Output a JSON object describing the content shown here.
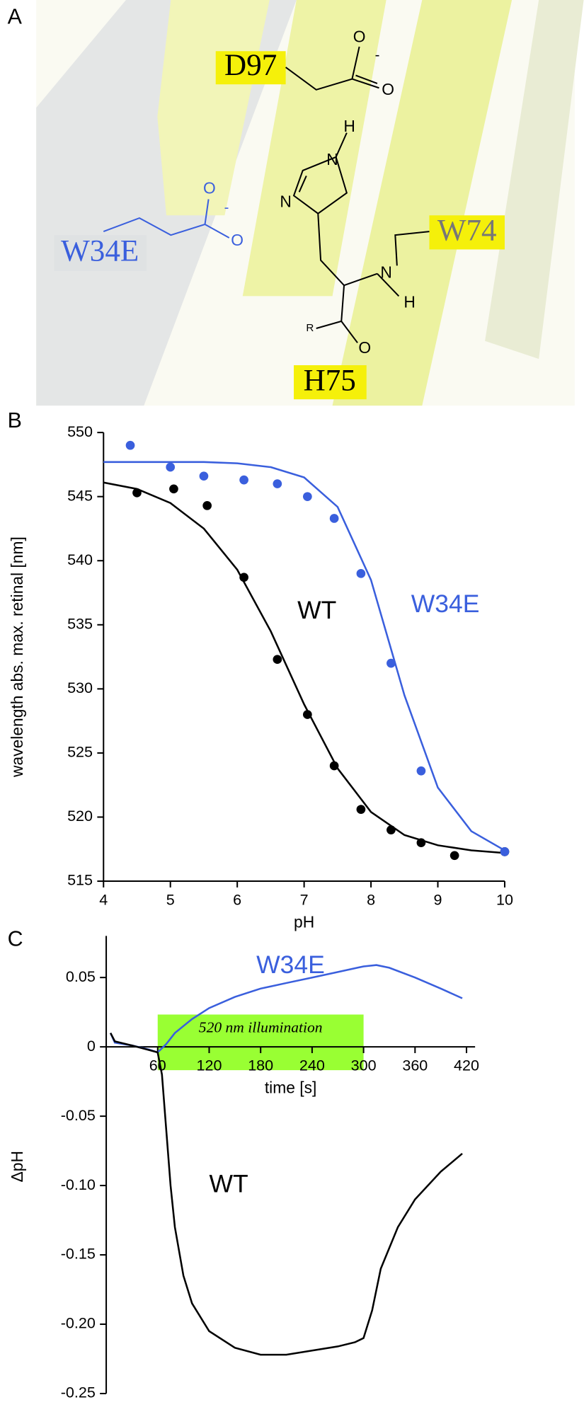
{
  "panel_a": {
    "panel": "A",
    "residues": [
      "D97",
      "W34E",
      "W74",
      "H75"
    ],
    "atoms": [
      "O",
      "-",
      "O",
      "H",
      "N",
      "N",
      "N",
      "H",
      "R",
      "O",
      "O",
      "-",
      "O"
    ]
  },
  "chart_data": [
    {
      "type": "scatter",
      "panel": "B",
      "xlabel": "pH",
      "ylabel": "wavelength abs. max. retinal [nm]",
      "xlim": [
        4,
        10
      ],
      "ylim": [
        515,
        550
      ],
      "xticks": [
        4,
        5,
        6,
        7,
        8,
        9,
        10
      ],
      "yticks": [
        515,
        520,
        525,
        530,
        535,
        540,
        545,
        550
      ],
      "series": [
        {
          "name": "WT",
          "color": "#000000",
          "x": [
            4.5,
            5.05,
            5.55,
            6.1,
            6.6,
            7.05,
            7.45,
            7.85,
            8.3,
            8.75,
            9.25,
            10.0
          ],
          "values": [
            545.3,
            545.6,
            544.3,
            538.7,
            532.3,
            528,
            524,
            520.6,
            519,
            518,
            517,
            517.3
          ],
          "fit_x": [
            4,
            4.5,
            5,
            5.5,
            6,
            6.5,
            7,
            7.5,
            8,
            8.5,
            9,
            9.5,
            10
          ],
          "fit_values": [
            546.1,
            545.6,
            544.5,
            542.5,
            539.3,
            534.5,
            528.8,
            523.8,
            520.4,
            518.6,
            517.8,
            517.4,
            517.2
          ]
        },
        {
          "name": "W34E",
          "color": "#3a5fdd",
          "x": [
            4.4,
            5.0,
            5.5,
            6.1,
            6.6,
            7.05,
            7.45,
            7.85,
            8.3,
            8.75,
            10.0
          ],
          "values": [
            549,
            547.3,
            546.6,
            546.3,
            546,
            545,
            543.3,
            539,
            532,
            523.6,
            517.3
          ],
          "fit_x": [
            4,
            4.5,
            5,
            5.5,
            6,
            6.5,
            7,
            7.5,
            8,
            8.5,
            9,
            9.5,
            10
          ],
          "fit_values": [
            547.7,
            547.7,
            547.7,
            547.7,
            547.6,
            547.3,
            546.5,
            544.2,
            538.5,
            529.5,
            522.3,
            518.9,
            517.4
          ]
        }
      ]
    },
    {
      "type": "line",
      "panel": "C",
      "xlabel": "time [s]",
      "ylabel": "ΔpH",
      "xlim": [
        0,
        430
      ],
      "ylim": [
        -0.25,
        0.08
      ],
      "xticks": [
        60,
        120,
        180,
        240,
        300,
        360,
        420
      ],
      "yticks": [
        0.05,
        0,
        -0.05,
        {
          "value": -0.1,
          "label": "-0.10"
        },
        -0.15,
        {
          "value": -0.2,
          "label": "-0.20"
        },
        -0.25
      ],
      "illumination": {
        "label": "520 nm illumination",
        "range": [
          60,
          300
        ],
        "color": "#99ff33"
      },
      "series": [
        {
          "name": "W34E",
          "color": "#3a5fdd",
          "x": [
            5,
            10,
            30,
            50,
            60,
            70,
            80,
            100,
            120,
            150,
            180,
            210,
            240,
            270,
            300,
            315,
            330,
            360,
            390,
            415
          ],
          "values": [
            0.01,
            0.003,
            0.001,
            -0.002,
            -0.004,
            0.002,
            0.01,
            0.02,
            0.028,
            0.036,
            0.042,
            0.046,
            0.05,
            0.054,
            0.058,
            0.059,
            0.057,
            0.05,
            0.042,
            0.035
          ]
        },
        {
          "name": "WT",
          "color": "#000000",
          "x": [
            5,
            10,
            30,
            60,
            65,
            70,
            75,
            80,
            90,
            100,
            120,
            150,
            180,
            210,
            240,
            270,
            290,
            300,
            310,
            320,
            340,
            360,
            390,
            415
          ],
          "values": [
            0.01,
            0.004,
            0.001,
            -0.004,
            -0.02,
            -0.06,
            -0.1,
            -0.13,
            -0.165,
            -0.185,
            -0.205,
            -0.217,
            -0.222,
            -0.222,
            -0.219,
            -0.216,
            -0.213,
            -0.21,
            -0.19,
            -0.16,
            -0.13,
            -0.11,
            -0.09,
            -0.077
          ]
        }
      ]
    }
  ]
}
